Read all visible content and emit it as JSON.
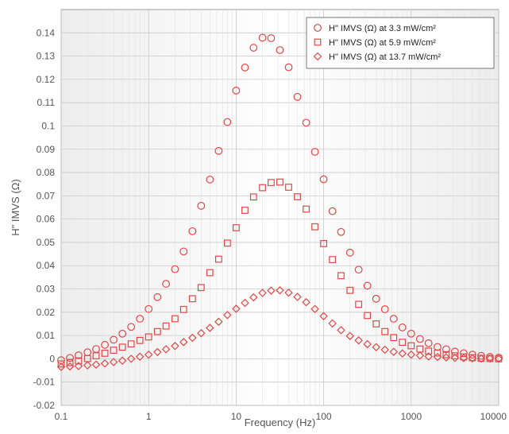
{
  "chart_data": {
    "type": "scatter",
    "title": "",
    "xlabel": "Frequency (Hz)",
    "ylabel": "H\" IMVS (Ω)",
    "xscale": "log",
    "xlim": [
      0.1,
      10000
    ],
    "ylim": [
      -0.02,
      0.15
    ],
    "xticks": [
      0.1,
      1,
      10,
      100,
      1000,
      10000
    ],
    "xtick_labels": [
      "0.1",
      "1",
      "10",
      "100",
      "1000",
      "10000"
    ],
    "yticks": [
      -0.02,
      -0.01,
      0,
      0.01,
      0.02,
      0.03,
      0.04,
      0.05,
      0.06,
      0.07,
      0.08,
      0.09,
      0.1,
      0.11,
      0.12,
      0.13,
      0.14
    ],
    "ytick_labels": [
      "-0.02",
      "-0.01",
      "0",
      "0.01",
      "0.02",
      "0.03",
      "0.04",
      "0.05",
      "0.06",
      "0.07",
      "0.08",
      "0.09",
      "0.1",
      "0.11",
      "0.12",
      "0.13",
      "0.14"
    ],
    "grid": true,
    "legend_position": "top-right",
    "marker_color": "#e34646",
    "series": [
      {
        "name": "H\" IMVS (Ω) at 3.3 mW/cm²",
        "marker": "circle",
        "x": [
          0.1,
          0.126,
          0.158,
          0.2,
          0.251,
          0.316,
          0.398,
          0.501,
          0.631,
          0.794,
          1,
          1.26,
          1.58,
          2,
          2.51,
          3.16,
          3.98,
          5.01,
          6.31,
          7.94,
          10,
          12.6,
          15.8,
          20,
          25.1,
          31.6,
          39.8,
          50.1,
          63.1,
          79.4,
          100,
          126,
          158,
          200,
          251,
          316,
          398,
          501,
          631,
          794,
          1000,
          1260,
          1580,
          2000,
          2510,
          3160,
          3980,
          5010,
          6310,
          7940,
          10000
        ],
        "y": [
          -0.0006,
          0.0004,
          0.0015,
          0.0028,
          0.0042,
          0.006,
          0.0082,
          0.0108,
          0.0137,
          0.0172,
          0.0214,
          0.0265,
          0.0322,
          0.0385,
          0.0461,
          0.0548,
          0.0657,
          0.077,
          0.0893,
          0.1017,
          0.1152,
          0.1251,
          0.1336,
          0.1379,
          0.1377,
          0.1326,
          0.1252,
          0.1125,
          0.1014,
          0.0889,
          0.0771,
          0.0634,
          0.0545,
          0.0456,
          0.0383,
          0.0314,
          0.0258,
          0.0213,
          0.0172,
          0.0135,
          0.0108,
          0.0085,
          0.0067,
          0.0051,
          0.0041,
          0.0031,
          0.0024,
          0.0018,
          0.0013,
          0.0008,
          0.0005
        ]
      },
      {
        "name": "H\" IMVS (Ω) at 5.9 mW/cm²",
        "marker": "square",
        "x": [
          0.1,
          0.126,
          0.158,
          0.2,
          0.251,
          0.316,
          0.398,
          0.501,
          0.631,
          0.794,
          1,
          1.26,
          1.58,
          2,
          2.51,
          3.16,
          3.98,
          5.01,
          6.31,
          7.94,
          10,
          12.6,
          15.8,
          20,
          25.1,
          31.6,
          39.8,
          50.1,
          63.1,
          79.4,
          100,
          126,
          158,
          200,
          251,
          316,
          398,
          501,
          631,
          794,
          1000,
          1260,
          1580,
          2000,
          2510,
          3160,
          3980,
          5010,
          6310,
          7940,
          10000
        ],
        "y": [
          -0.0022,
          -0.0016,
          -0.0009,
          0.0001,
          0.0013,
          0.0024,
          0.0037,
          0.005,
          0.0064,
          0.0079,
          0.0094,
          0.0117,
          0.0141,
          0.0172,
          0.0212,
          0.0258,
          0.0306,
          0.037,
          0.0428,
          0.0497,
          0.0563,
          0.0638,
          0.0695,
          0.0735,
          0.0757,
          0.0759,
          0.0737,
          0.0696,
          0.0643,
          0.0567,
          0.0495,
          0.0426,
          0.0357,
          0.0294,
          0.0234,
          0.0186,
          0.015,
          0.0117,
          0.0091,
          0.0071,
          0.0056,
          0.0042,
          0.0033,
          0.0025,
          0.0018,
          0.0013,
          0.0008,
          0.0005,
          0.0002,
          0.0001,
          0
        ]
      },
      {
        "name": "H\" IMVS (Ω) at 13.7 mW/cm²",
        "marker": "diamond",
        "x": [
          0.1,
          0.126,
          0.158,
          0.2,
          0.251,
          0.316,
          0.398,
          0.501,
          0.631,
          0.794,
          1,
          1.26,
          1.58,
          2,
          2.51,
          3.16,
          3.98,
          5.01,
          6.31,
          7.94,
          10,
          12.6,
          15.8,
          20,
          25.1,
          31.6,
          39.8,
          50.1,
          63.1,
          79.4,
          100,
          126,
          158,
          200,
          251,
          316,
          398,
          501,
          631,
          794,
          1000,
          1260,
          1580,
          2000,
          2510,
          3160,
          3980,
          5010,
          6310,
          7940,
          10000
        ],
        "y": [
          -0.0035,
          -0.0033,
          -0.0031,
          -0.0028,
          -0.0025,
          -0.002,
          -0.0014,
          -0.0008,
          0,
          0.0009,
          0.0018,
          0.0029,
          0.0041,
          0.0055,
          0.0072,
          0.009,
          0.011,
          0.0133,
          0.0159,
          0.0188,
          0.0215,
          0.024,
          0.0264,
          0.0283,
          0.0293,
          0.0294,
          0.0284,
          0.0266,
          0.0243,
          0.0214,
          0.0183,
          0.0152,
          0.0123,
          0.0098,
          0.0079,
          0.0063,
          0.005,
          0.0039,
          0.003,
          0.0023,
          0.0018,
          0.0014,
          0.001,
          0.0008,
          0.0006,
          0.0004,
          0.0003,
          0.0002,
          0.0001,
          0.0001,
          0
        ]
      }
    ]
  }
}
